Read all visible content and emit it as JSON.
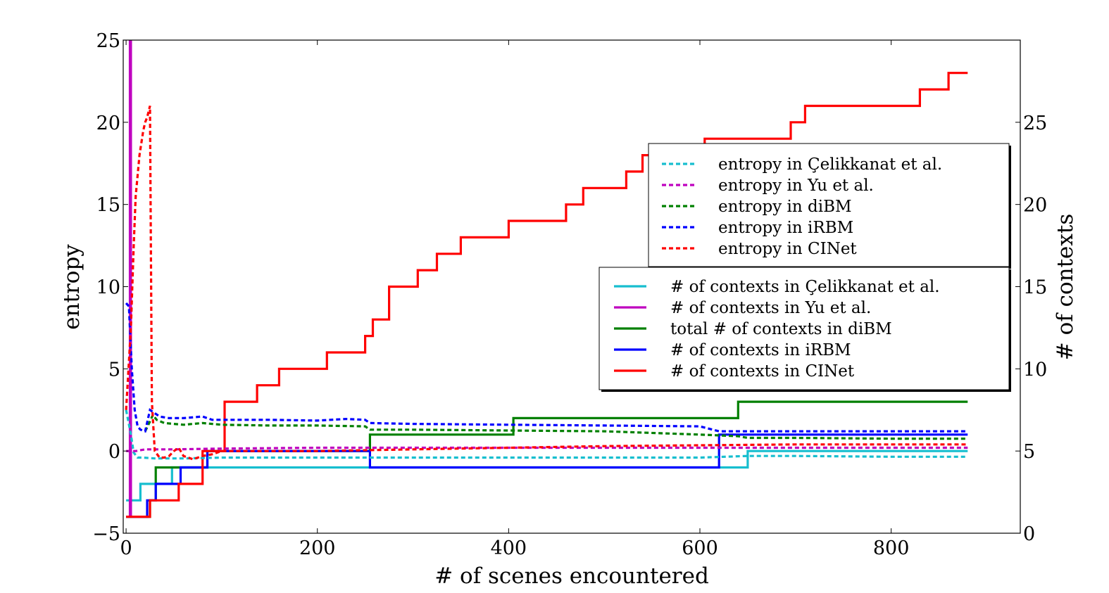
{
  "chart_data": {
    "type": "line",
    "xlabel": "# of scenes encountered",
    "ylabel_left": "entropy",
    "ylabel_right": "# of contexts",
    "xlim": [
      -3,
      935
    ],
    "ylim_left": [
      -5,
      25
    ],
    "ylim_right": [
      0,
      30
    ],
    "xticks": [
      0,
      200,
      400,
      600,
      800
    ],
    "yticks_left": [
      -5,
      0,
      5,
      10,
      15,
      20,
      25
    ],
    "yticks_right": [
      0,
      5,
      10,
      15,
      20,
      25
    ],
    "xtick_labels": [
      "0",
      "200",
      "400",
      "600",
      "800"
    ],
    "ytick_left_labels": [
      "−5",
      "0",
      "5",
      "10",
      "15",
      "20",
      "25"
    ],
    "ytick_right_labels": [
      "0",
      "5",
      "10",
      "15",
      "20",
      "25"
    ],
    "grid": false,
    "legend_entropy_placement": "upper-right",
    "legend_contexts_placement": "center-right",
    "series_entropy": [
      {
        "name": "entropy in Çelikkanat et al.",
        "color": "#17becf",
        "style": "dotted",
        "x": [
          0,
          5,
          8,
          12,
          18,
          30,
          60,
          100,
          200,
          300,
          400,
          500,
          600,
          650,
          700,
          800,
          880
        ],
        "y": [
          2.5,
          1.0,
          -0.1,
          -0.4,
          -0.4,
          -0.45,
          -0.45,
          -0.4,
          -0.4,
          -0.4,
          -0.4,
          -0.4,
          -0.4,
          -0.3,
          -0.3,
          -0.35,
          -0.35
        ]
      },
      {
        "name": "entropy in Yu et al.",
        "color": "#bf00bf",
        "style": "dotted",
        "x": [
          0,
          5,
          10,
          20,
          50,
          100,
          200,
          300,
          400,
          500,
          600,
          700,
          880
        ],
        "y": [
          0.0,
          0.0,
          0.0,
          0.1,
          0.1,
          0.15,
          0.2,
          0.2,
          0.2,
          0.2,
          0.2,
          0.2,
          0.2
        ]
      },
      {
        "name": "entropy in diBM",
        "color": "#008000",
        "style": "dotted",
        "x": [
          20,
          25,
          28,
          32,
          40,
          60,
          80,
          100,
          150,
          200,
          250,
          255,
          260,
          300,
          400,
          500,
          600,
          640,
          650,
          700,
          800,
          880
        ],
        "y": [
          1.2,
          1.8,
          2.2,
          1.9,
          1.7,
          1.6,
          1.7,
          1.6,
          1.55,
          1.55,
          1.5,
          1.3,
          1.3,
          1.3,
          1.25,
          1.2,
          1.0,
          0.9,
          0.8,
          0.8,
          0.75,
          0.75
        ]
      },
      {
        "name": "entropy in iRBM",
        "color": "#0000ff",
        "style": "dotted",
        "x": [
          0,
          3,
          6,
          9,
          12,
          15,
          20,
          25,
          30,
          35,
          45,
          60,
          80,
          90,
          100,
          150,
          200,
          230,
          250,
          255,
          300,
          400,
          500,
          600,
          620,
          700,
          800,
          880
        ],
        "y": [
          9.0,
          8.8,
          5.0,
          2.5,
          1.5,
          1.3,
          1.2,
          2.5,
          2.3,
          2.1,
          2.0,
          2.0,
          2.1,
          1.9,
          1.9,
          1.9,
          1.85,
          1.95,
          1.9,
          1.7,
          1.65,
          1.6,
          1.55,
          1.5,
          1.2,
          1.2,
          1.2,
          1.2
        ]
      },
      {
        "name": "entropy in CINet",
        "color": "#ff0000",
        "style": "dotted",
        "x": [
          0,
          5,
          8,
          10,
          14,
          18,
          20,
          22,
          25,
          27,
          30,
          35,
          40,
          45,
          50,
          55,
          60,
          70,
          80,
          90,
          100,
          150,
          200,
          300,
          400,
          500,
          600,
          700,
          880
        ],
        "y": [
          2.5,
          7.5,
          12.5,
          15.5,
          18.0,
          19.5,
          20.0,
          20.3,
          21.0,
          3.0,
          0.0,
          -0.4,
          -0.4,
          -0.3,
          0.0,
          0.2,
          -0.3,
          -0.5,
          -0.3,
          -0.2,
          0.0,
          0.0,
          0.0,
          0.1,
          0.2,
          0.3,
          0.35,
          0.4,
          0.4
        ]
      }
    ],
    "series_contexts": [
      {
        "name": "# of contexts in Çelikkanat et al.",
        "color": "#17becf",
        "style": "solid",
        "x": [
          0,
          15,
          15,
          48,
          48,
          650,
          650,
          880
        ],
        "y": [
          2,
          2,
          3,
          3,
          4,
          4,
          5,
          5
        ]
      },
      {
        "name": "# of contexts in Yu et al.",
        "color": "#bf00bf",
        "style": "solid",
        "x": [
          4,
          4,
          5,
          5
        ],
        "y": [
          1,
          30,
          30,
          1
        ]
      },
      {
        "name": "total # of contexts in diBM",
        "color": "#008000",
        "style": "solid",
        "x": [
          0,
          25,
          25,
          31,
          31,
          85,
          85,
          255,
          255,
          405,
          405,
          640,
          640,
          880
        ],
        "y": [
          1,
          1,
          2,
          2,
          4,
          4,
          5,
          5,
          6,
          6,
          7,
          7,
          8,
          8
        ]
      },
      {
        "name": "# of contexts in iRBM",
        "color": "#0000ff",
        "style": "solid",
        "x": [
          0,
          22,
          22,
          31,
          31,
          57,
          57,
          85,
          85,
          255,
          255,
          620,
          620,
          880
        ],
        "y": [
          1,
          1,
          2,
          2,
          3,
          3,
          4,
          4,
          5,
          5,
          4,
          4,
          6,
          6
        ]
      },
      {
        "name": "# of contexts in CINet",
        "color": "#ff0000",
        "style": "solid",
        "x": [
          0,
          25,
          25,
          55,
          55,
          80,
          80,
          103,
          103,
          137,
          137,
          160,
          160,
          210,
          210,
          250,
          250,
          258,
          258,
          275,
          275,
          305,
          305,
          325,
          325,
          350,
          350,
          400,
          400,
          460,
          460,
          478,
          478,
          523,
          523,
          540,
          540,
          605,
          605,
          695,
          695,
          710,
          710,
          830,
          830,
          860,
          860,
          880
        ],
        "y": [
          1,
          1,
          2,
          2,
          3,
          3,
          5,
          5,
          8,
          8,
          9,
          9,
          10,
          10,
          11,
          11,
          12,
          12,
          13,
          13,
          15,
          15,
          16,
          16,
          17,
          17,
          18,
          18,
          19,
          19,
          20,
          20,
          21,
          21,
          22,
          22,
          23,
          23,
          24,
          24,
          25,
          25,
          26,
          26,
          27,
          27,
          28,
          28
        ]
      }
    ]
  }
}
